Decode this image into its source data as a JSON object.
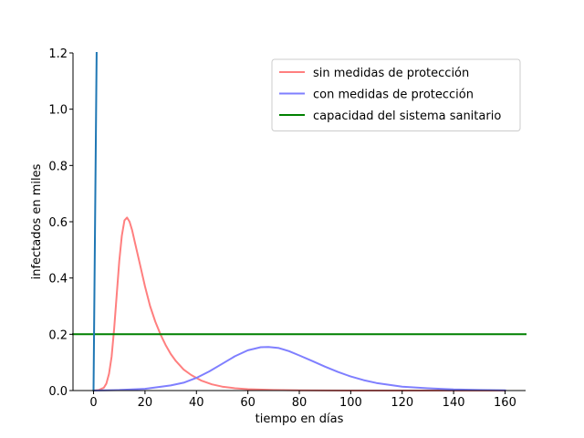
{
  "chart_data": {
    "type": "line",
    "title": "",
    "xlabel": "tiempo en días",
    "ylabel": "infectados en miles",
    "xlim": [
      -8,
      168
    ],
    "ylim": [
      0,
      1.2
    ],
    "xticks": [
      0,
      20,
      40,
      60,
      80,
      100,
      120,
      140,
      160
    ],
    "yticks": [
      0.0,
      0.2,
      0.4,
      0.6,
      0.8,
      1.0,
      1.2
    ],
    "grid": false,
    "legend_position": "top-right",
    "series": [
      {
        "name": "sin medidas de protección",
        "color": "#ff7f7f",
        "x": [
          0,
          2,
          4,
          5,
          6,
          7,
          8,
          9,
          10,
          11,
          12,
          13,
          14,
          15,
          16,
          18,
          20,
          22,
          24,
          26,
          28,
          30,
          32,
          35,
          38,
          42,
          46,
          50,
          55,
          60,
          70,
          80,
          100,
          130,
          160
        ],
        "y": [
          0.0,
          0.002,
          0.01,
          0.025,
          0.06,
          0.12,
          0.22,
          0.34,
          0.46,
          0.55,
          0.605,
          0.615,
          0.6,
          0.57,
          0.53,
          0.45,
          0.37,
          0.3,
          0.245,
          0.2,
          0.162,
          0.13,
          0.105,
          0.075,
          0.055,
          0.035,
          0.022,
          0.014,
          0.008,
          0.005,
          0.002,
          0.001,
          0.0,
          0.0,
          0.0
        ]
      },
      {
        "name": "con medidas de protección",
        "color": "#7f7fff",
        "x": [
          0,
          10,
          20,
          30,
          35,
          40,
          45,
          50,
          55,
          60,
          65,
          68,
          72,
          76,
          80,
          85,
          90,
          95,
          100,
          105,
          110,
          120,
          130,
          140,
          150,
          160
        ],
        "y": [
          0.0,
          0.002,
          0.006,
          0.018,
          0.028,
          0.045,
          0.068,
          0.095,
          0.122,
          0.143,
          0.154,
          0.155,
          0.151,
          0.14,
          0.125,
          0.105,
          0.085,
          0.066,
          0.05,
          0.037,
          0.027,
          0.014,
          0.008,
          0.004,
          0.002,
          0.001
        ]
      },
      {
        "name": "capacidad del sistema sanitario",
        "color": "#008000",
        "x": [
          -8,
          168
        ],
        "y": [
          0.2,
          0.2
        ]
      },
      {
        "name": "",
        "color": "#1f77b4",
        "x": [
          0,
          0.6,
          1.2
        ],
        "y": [
          0.0,
          0.6,
          1.2
        ]
      }
    ]
  }
}
